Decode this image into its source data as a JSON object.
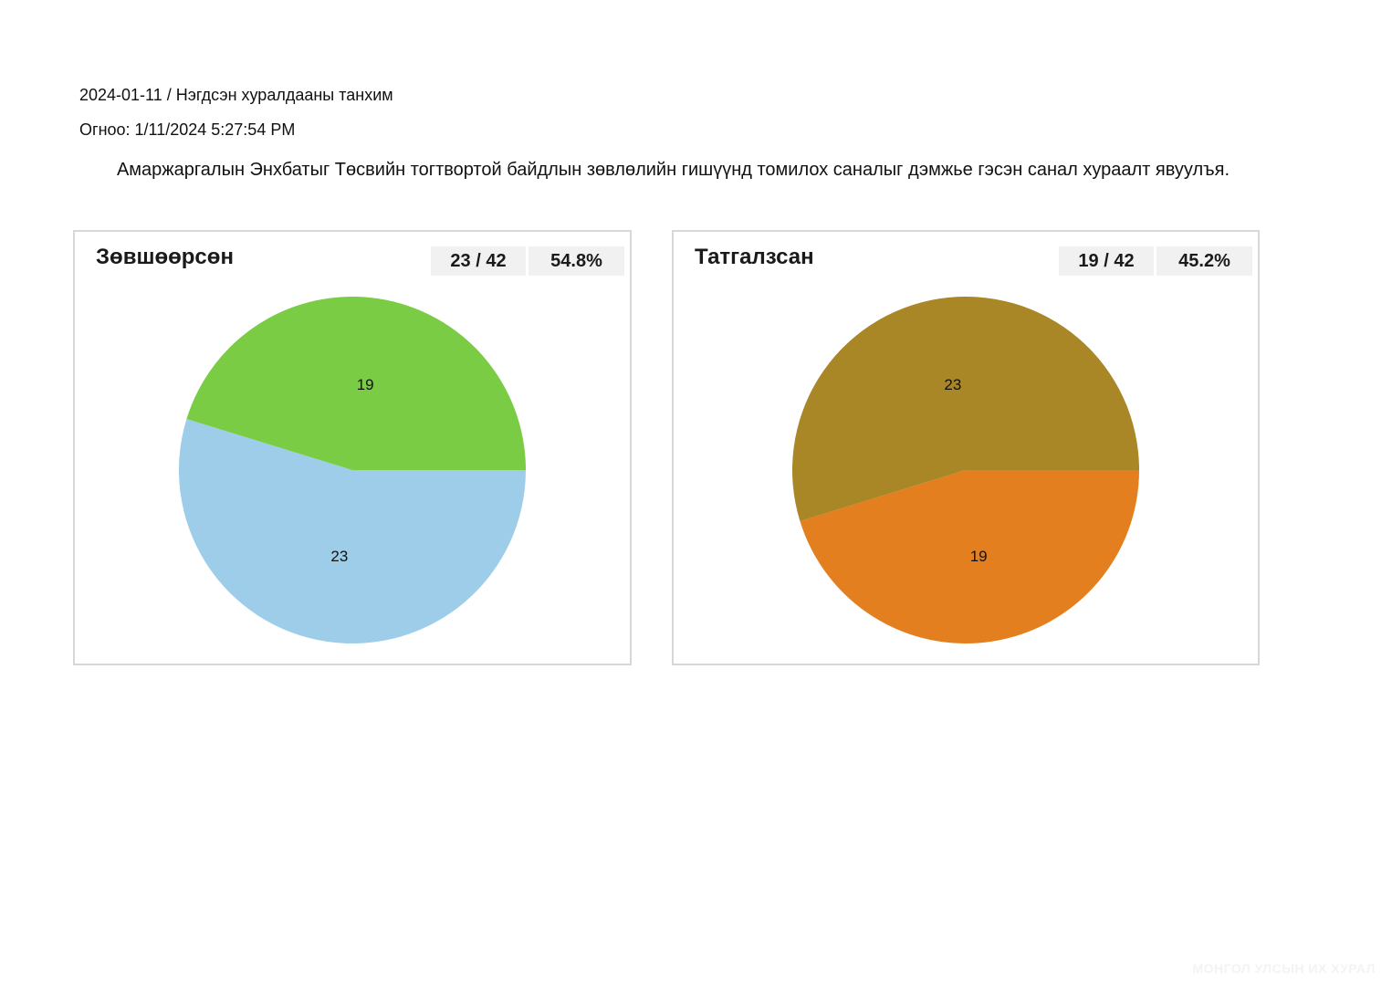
{
  "header": {
    "session_line": "2024-01-11 / Нэгдсэн хуралдааны танхим",
    "date_line": "Огноо: 1/11/2024 5:27:54 PM",
    "motion": "Амаржаргалын Энхбатыг Төсвийн тогтвортой байдлын зөвлөлийн гишүүнд томилох саналыг дэмжье гэсэн санал хураалт явуулъя."
  },
  "panels": [
    {
      "title": "Зөвшөөрсөн",
      "count_text": "23 / 42",
      "percent_text": "54.8%"
    },
    {
      "title": "Татгалзсан",
      "count_text": "19 / 42",
      "percent_text": "45.2%"
    }
  ],
  "chart_data": [
    {
      "type": "pie",
      "slices": [
        {
          "value": 23,
          "label": "23",
          "color": "#9ecde9"
        },
        {
          "value": 19,
          "label": "19",
          "color": "#7acc44"
        }
      ]
    },
    {
      "type": "pie",
      "slices": [
        {
          "value": 19,
          "label": "19",
          "color": "#e37f1f"
        },
        {
          "value": 23,
          "label": "23",
          "color": "#a98626"
        }
      ]
    }
  ],
  "watermark": "МОНГОЛ УЛСЫН ИХ ХУРАЛ"
}
